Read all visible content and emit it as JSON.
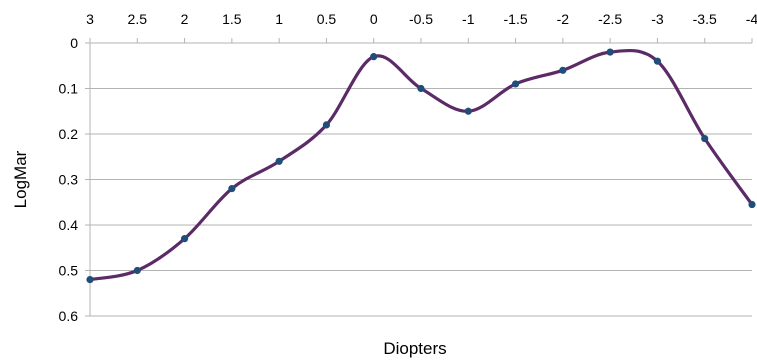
{
  "chart_data": {
    "type": "line",
    "title": "",
    "xlabel": "Diopters",
    "ylabel": "LogMar",
    "x_axis_position": "top",
    "x_ticks": [
      3,
      2.5,
      2,
      1.5,
      1,
      0.5,
      0,
      -0.5,
      -1,
      -1.5,
      -2,
      -2.5,
      -3,
      -3.5,
      -4
    ],
    "x_tick_labels": [
      "3",
      "2.5",
      "2",
      "1.5",
      "1",
      "0.5",
      "0",
      "-0.5",
      "-1",
      "-1.5",
      "-2",
      "-2.5",
      "-3",
      "-3.5",
      "-4"
    ],
    "xlim": [
      3,
      -4
    ],
    "y_ticks": [
      0,
      0.1,
      0.2,
      0.3,
      0.4,
      0.5,
      0.6
    ],
    "y_tick_labels": [
      "0",
      "0.1",
      "0.2",
      "0.3",
      "0.4",
      "0.5",
      "0.6"
    ],
    "ylim": [
      0,
      0.6
    ],
    "y_inverted": true,
    "grid": true,
    "smooth": true,
    "series": [
      {
        "x": [
          3,
          2.5,
          2,
          1.5,
          1,
          0.5,
          0,
          -0.5,
          -1,
          -1.5,
          -2,
          -2.5,
          -3,
          -3.5,
          -4
        ],
        "y": [
          0.52,
          0.5,
          0.43,
          0.32,
          0.26,
          0.18,
          0.03,
          0.1,
          0.15,
          0.09,
          0.06,
          0.02,
          0.04,
          0.21,
          0.355
        ],
        "line_color": "#5b2a67",
        "marker_color": "#1f4e7a"
      }
    ]
  }
}
